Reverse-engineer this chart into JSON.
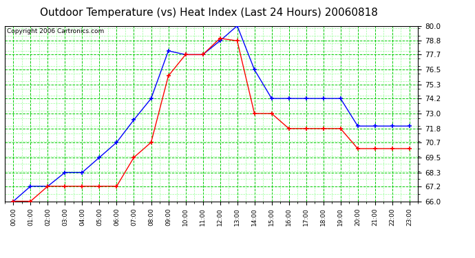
{
  "title": "Outdoor Temperature (vs) Heat Index (Last 24 Hours) 20060818",
  "copyright": "Copyright 2006 Cartronics.com",
  "x_labels": [
    "00:00",
    "01:00",
    "02:00",
    "03:00",
    "04:00",
    "05:00",
    "06:00",
    "07:00",
    "08:00",
    "09:00",
    "10:00",
    "11:00",
    "12:00",
    "13:00",
    "14:00",
    "15:00",
    "16:00",
    "17:00",
    "18:00",
    "19:00",
    "20:00",
    "21:00",
    "22:00",
    "23:00"
  ],
  "blue_data": [
    66.0,
    67.2,
    67.2,
    68.3,
    68.3,
    69.5,
    70.7,
    72.5,
    74.2,
    78.0,
    77.7,
    77.7,
    78.8,
    80.0,
    76.5,
    74.2,
    74.2,
    74.2,
    74.2,
    74.2,
    72.0,
    72.0,
    72.0,
    72.0
  ],
  "red_data": [
    66.0,
    66.0,
    67.2,
    67.2,
    67.2,
    67.2,
    67.2,
    69.5,
    70.7,
    76.0,
    77.7,
    77.7,
    79.0,
    78.8,
    73.0,
    73.0,
    71.8,
    71.8,
    71.8,
    71.8,
    70.2,
    70.2,
    70.2,
    70.2
  ],
  "ylim": [
    66.0,
    80.0
  ],
  "yticks": [
    66.0,
    67.2,
    68.3,
    69.5,
    70.7,
    71.8,
    73.0,
    74.2,
    75.3,
    76.5,
    77.7,
    78.8,
    80.0
  ],
  "bg_color": "#ffffff",
  "plot_bg": "#ffffff",
  "grid_major_color": "#00CC00",
  "grid_minor_color": "#99FF99",
  "blue_color": "#0000FF",
  "red_color": "#FF0000",
  "title_fontsize": 11,
  "copyright_fontsize": 6.5
}
